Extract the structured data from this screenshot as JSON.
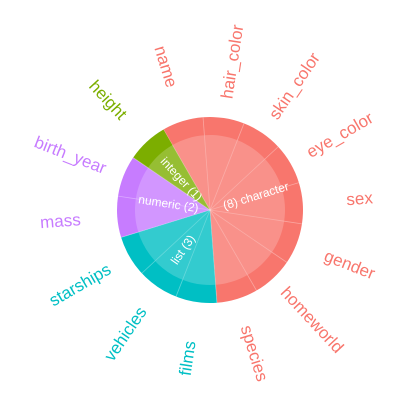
{
  "chart_data": {
    "type": "pie",
    "description_note": "",
    "start_angle_deg": -30,
    "groups": [
      {
        "name": "character",
        "label": "(8) character",
        "count": 8,
        "color": "#F8766D",
        "columns": [
          "name",
          "hair_color",
          "skin_color",
          "eye_color",
          "sex",
          "gender",
          "homeworld",
          "species"
        ]
      },
      {
        "name": "list",
        "label": "list (3)",
        "count": 3,
        "color": "#00BFC4",
        "columns": [
          "films",
          "vehicles",
          "starships"
        ]
      },
      {
        "name": "numeric",
        "label": "numeric (2)",
        "count": 2,
        "color": "#C77CFF",
        "columns": [
          "mass",
          "birth_year"
        ]
      },
      {
        "name": "integer",
        "label": "integer (1)",
        "count": 1,
        "color": "#7CAE00",
        "columns": [
          "height"
        ]
      }
    ]
  }
}
